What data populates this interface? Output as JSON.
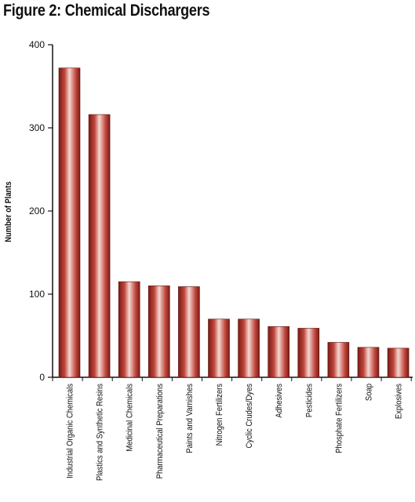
{
  "chart_data": {
    "type": "bar",
    "title": "Figure 2: Chemical Dischargers",
    "xlabel": "",
    "ylabel": "Number of Plants",
    "ylim": [
      0,
      400
    ],
    "yticks": [
      "0",
      "100",
      "200",
      "300",
      "400"
    ],
    "grid": false,
    "categories": [
      "Industrial Organic Chemicals",
      "Plastics and Synthetic Resins",
      "Medicinal Chemicals",
      "Pharmaceutical Preparations",
      "Paints and Varnishes",
      "Nitrogen Fertilizers",
      "Cyclic Crudes/Dyes",
      "Adhesives",
      "Pesticides",
      "Phosphate Fertilizers",
      "Soap",
      "Explosives"
    ],
    "values": [
      372,
      316,
      115,
      110,
      109,
      70,
      70,
      61,
      59,
      42,
      36,
      35
    ],
    "colors": {
      "bar_dark": "#7a1a14",
      "bar_mid": "#c0473d",
      "bar_light": "#f4d8d2",
      "axis": "#111111"
    }
  }
}
